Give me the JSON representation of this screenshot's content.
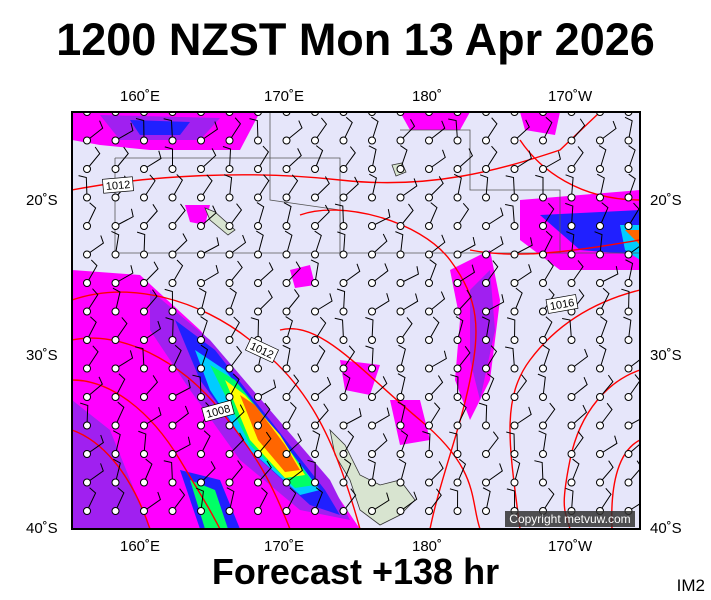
{
  "title": "1200 NZST Mon 13 Apr 2026",
  "subtitle": "Forecast +138 hr",
  "product_code": "IM2",
  "copyright": "Copyright metvuw.com",
  "longitude_labels": [
    "160˚E",
    "170˚E",
    "180˚",
    "170˚W"
  ],
  "latitude_labels": [
    "20˚S",
    "30˚S",
    "40˚S"
  ],
  "isobar_labels": [
    "1012",
    "1016",
    "1012",
    "1008"
  ],
  "colors": {
    "background": "#e6e6fa",
    "isobar": "#ff0000",
    "rain_light": "#ff00ff",
    "rain_mod": "#a020f0",
    "rain_heavy": "#2020ff",
    "rain_cyan": "#00ccff",
    "rain_green": "#00ff66",
    "rain_yellow": "#ffff00",
    "rain_orange": "#ff6600",
    "land": "#d8e4d0"
  },
  "layers": [
    "rain",
    "mslp-isobars",
    "wind-barbs",
    "coastlines",
    "eez-boundaries"
  ]
}
